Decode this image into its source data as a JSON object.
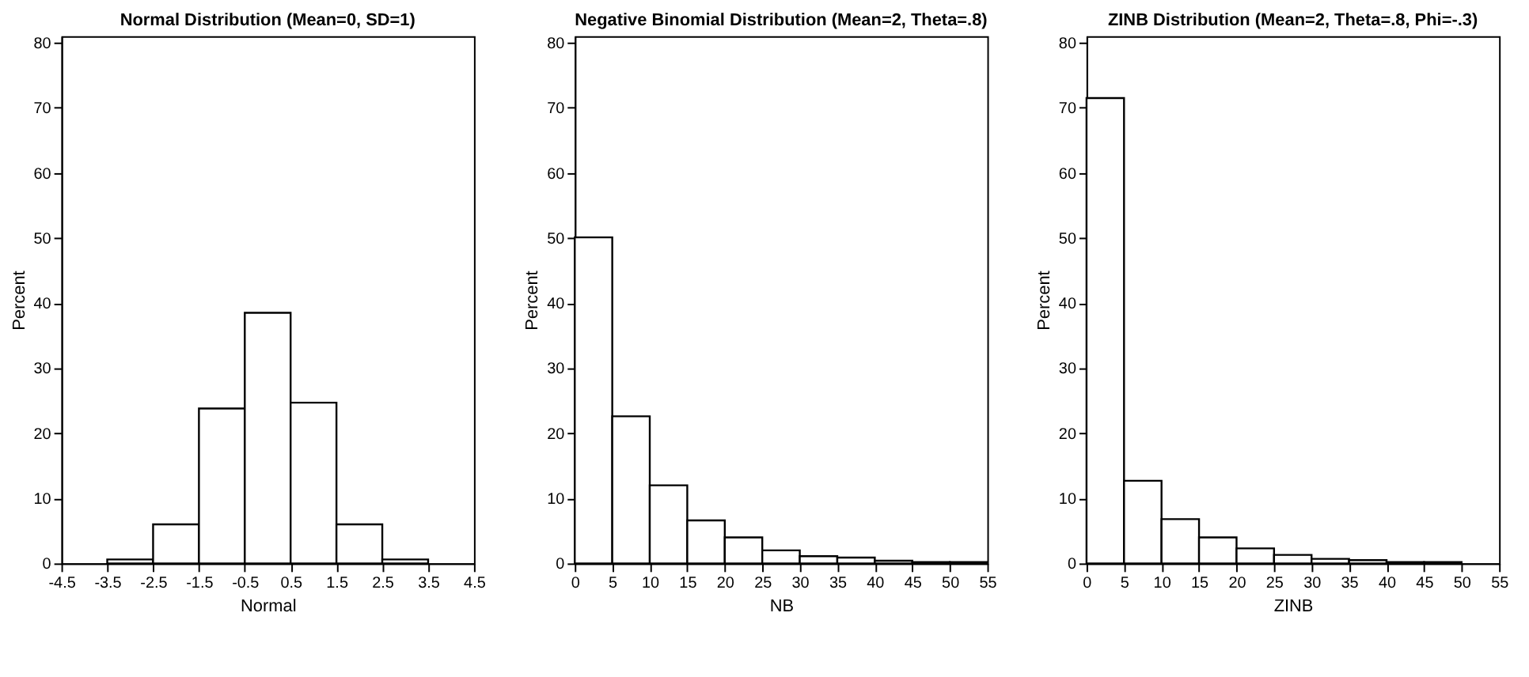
{
  "chart_data": [
    {
      "type": "histogram",
      "title": "Normal Distribution (Mean=0, SD=1)",
      "xlabel": "Normal",
      "ylabel": "Percent",
      "bins": [
        -3.5,
        -2.5,
        -1.5,
        -0.5,
        0.5,
        1.5,
        2.5,
        3.5
      ],
      "values": [
        0.6,
        6,
        23.8,
        38.5,
        24.7,
        6,
        0.6
      ],
      "color": "#ffffff",
      "xlim": [
        -4.5,
        4.5
      ],
      "xticks": [
        -4.5,
        -3.5,
        -2.5,
        -1.5,
        -0.5,
        0.5,
        1.5,
        2.5,
        3.5,
        4.5
      ],
      "ylim": [
        0,
        81
      ],
      "yticks": [
        0,
        10,
        20,
        30,
        40,
        50,
        60,
        70,
        80
      ],
      "grid": false
    },
    {
      "type": "histogram",
      "title": "Negative Binomial Distribution (Mean=2, Theta=.8)",
      "xlabel": "NB",
      "ylabel": "Percent",
      "bins": [
        0,
        5,
        10,
        15,
        20,
        25,
        30,
        35,
        40,
        45,
        50,
        55
      ],
      "values": [
        50.1,
        22.6,
        12,
        6.6,
        4,
        2,
        1.1,
        0.9,
        0.4,
        0.2,
        0.2
      ],
      "color": "#ffffff",
      "xlim": [
        0,
        55
      ],
      "xticks": [
        0,
        5,
        10,
        15,
        20,
        25,
        30,
        35,
        40,
        45,
        50,
        55
      ],
      "ylim": [
        0,
        81
      ],
      "yticks": [
        0,
        10,
        20,
        30,
        40,
        50,
        60,
        70,
        80
      ],
      "grid": false
    },
    {
      "type": "histogram",
      "title": "ZINB Distribution (Mean=2, Theta=.8, Phi=-.3)",
      "xlabel": "ZINB",
      "ylabel": "Percent",
      "bins": [
        0,
        5,
        10,
        15,
        20,
        25,
        30,
        35,
        40,
        45,
        50
      ],
      "values": [
        71.5,
        12.7,
        6.8,
        4,
        2.3,
        1.3,
        0.7,
        0.5,
        0.2,
        0.2
      ],
      "color": "#ffffff",
      "xlim": [
        0,
        55
      ],
      "xticks": [
        0,
        5,
        10,
        15,
        20,
        25,
        30,
        35,
        40,
        45,
        50,
        55
      ],
      "ylim": [
        0,
        81
      ],
      "yticks": [
        0,
        10,
        20,
        30,
        40,
        50,
        60,
        70,
        80
      ],
      "grid": false
    }
  ]
}
